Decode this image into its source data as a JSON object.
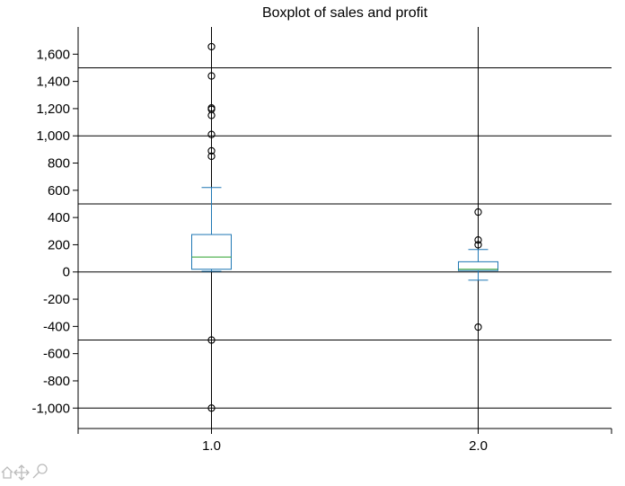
{
  "chart_data": {
    "type": "box",
    "title": "Boxplot of sales and profit",
    "xlabel": "",
    "ylabel": "",
    "categories": [
      "1.0",
      "2.0"
    ],
    "xlim": [
      0.5,
      2.5
    ],
    "ylim": [
      -1150,
      1800
    ],
    "yticks": [
      -1000,
      -800,
      -600,
      -400,
      -200,
      0,
      200,
      400,
      600,
      800,
      1000,
      1200,
      1400,
      1600
    ],
    "ytick_labels": [
      "-1,000",
      "-800",
      "-600",
      "-400",
      "-200",
      "0",
      "200",
      "400",
      "600",
      "800",
      "1,000",
      "1,200",
      "1,400",
      "1,600"
    ],
    "grid_y": [
      -1000,
      -500,
      0,
      500,
      1000,
      1500
    ],
    "grid_x": [
      1.0,
      2.0
    ],
    "boxes": [
      {
        "category": "1.0",
        "whisker_low": 5,
        "q1": 20,
        "median": 110,
        "q3": 275,
        "whisker_high": 620,
        "outliers": [
          1655,
          1440,
          1205,
          1195,
          1150,
          1010,
          890,
          850,
          -500,
          -1000
        ]
      },
      {
        "category": "2.0",
        "whisker_low": -60,
        "q1": 10,
        "median": 20,
        "q3": 75,
        "whisker_high": 165,
        "outliers": [
          440,
          235,
          200,
          -405
        ]
      }
    ],
    "colors": {
      "box": "#1f77b4",
      "median": "#2ca02c",
      "whisker": "#1f77b4",
      "grid": "#000000",
      "outlier": "#000000"
    }
  },
  "toolbar": {
    "icons": [
      "home-icon",
      "pan-icon",
      "zoom-icon"
    ]
  }
}
